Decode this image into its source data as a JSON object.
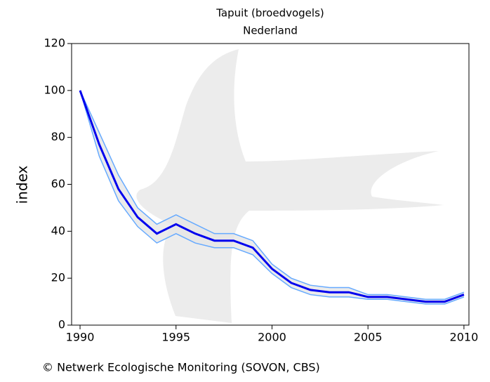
{
  "chart_data": {
    "type": "line",
    "title": "Tapuit (broedvogels)",
    "subtitle": "Nederland",
    "ylabel": "index",
    "footer": "© Netwerk Ecologische Monitoring (SOVON, CBS)",
    "x": [
      1990,
      1991,
      1992,
      1993,
      1994,
      1995,
      1996,
      1997,
      1998,
      1999,
      2000,
      2001,
      2002,
      2003,
      2004,
      2005,
      2006,
      2007,
      2008,
      2009,
      2010
    ],
    "series": [
      {
        "color": "#66aaff",
        "values": [
          100,
          82,
          64,
          50,
          43,
          47,
          43,
          39,
          39,
          36,
          26,
          20,
          17,
          16,
          16,
          13,
          13,
          12,
          11,
          11,
          14
        ]
      },
      {
        "color": "#66aaff",
        "values": [
          100,
          72,
          53,
          42,
          35,
          39,
          35,
          33,
          33,
          30,
          22,
          16,
          13,
          12,
          12,
          11,
          11,
          10,
          9,
          9,
          12
        ]
      },
      {
        "color": "#0000ee",
        "values": [
          100,
          77,
          58,
          46,
          39,
          43,
          39,
          36,
          36,
          33,
          24,
          18,
          15,
          14,
          14,
          12,
          12,
          11,
          10,
          10,
          13
        ]
      }
    ],
    "band_color": "#e6e6e6",
    "xlim": [
      1989.56,
      2010.26
    ],
    "xticks": [
      1990,
      1995,
      2000,
      2005,
      2010
    ],
    "ylim": [
      0,
      120
    ],
    "yticks": [
      0,
      20,
      40,
      60,
      80,
      100,
      120
    ]
  }
}
